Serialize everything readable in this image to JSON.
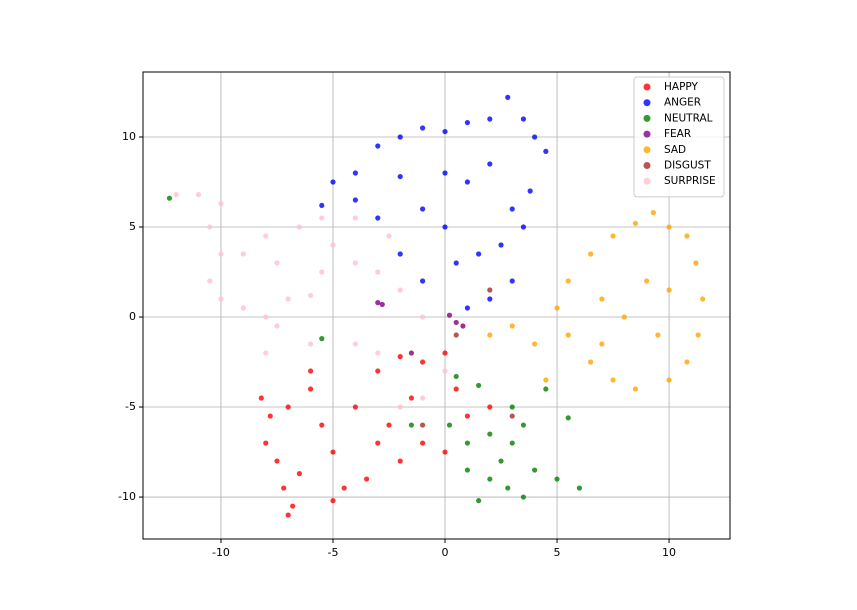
{
  "chart_data": {
    "type": "scatter",
    "xlim": [
      -13.48,
      12.72
    ],
    "ylim": [
      -12.33,
      13.61
    ],
    "xticks": [
      -10,
      -5,
      0,
      5,
      10
    ],
    "yticks": [
      -10,
      -5,
      0,
      5,
      10
    ],
    "grid": true,
    "legend": "upper right",
    "series": [
      {
        "name": "HAPPY",
        "color": "#ff0000",
        "x": [
          -7,
          -6.8,
          -7.2,
          -6.5,
          -7.5,
          -8,
          -7.8,
          -8.2,
          -7,
          -6,
          -5.5,
          -5,
          -4.5,
          -5,
          -3.5,
          -4,
          -3,
          -2.5,
          -2,
          -1,
          0,
          -1.5,
          -1,
          0.5,
          1,
          -3,
          -6,
          -2,
          0,
          2
        ],
        "y": [
          -11,
          -10.5,
          -9.5,
          -8.7,
          -8,
          -7,
          -5.5,
          -4.5,
          -5,
          -4,
          -6,
          -7.5,
          -9.5,
          -10.2,
          -9,
          -5,
          -3,
          -6,
          -8,
          -7,
          -7.5,
          -4.5,
          -2.5,
          -4,
          -5.5,
          -7,
          -3,
          -2.2,
          -2,
          -5
        ]
      },
      {
        "name": "ANGER",
        "color": "#0000ff",
        "x": [
          -5.5,
          -5,
          -4,
          -3,
          -2,
          -1,
          0,
          1,
          2,
          2.8,
          3.5,
          4.5,
          4,
          3.8,
          3,
          2.5,
          3,
          2,
          1,
          0.5,
          -1,
          -2,
          -3,
          -4,
          -1,
          0,
          1,
          2,
          -2,
          0,
          3.5,
          1.5
        ],
        "y": [
          6.2,
          7.5,
          8,
          9.5,
          10,
          10.5,
          10.3,
          10.8,
          11,
          12.2,
          11,
          9.2,
          10,
          7,
          6,
          4,
          2,
          1,
          0.5,
          3,
          2,
          3.5,
          5.5,
          6.5,
          6,
          5,
          7.5,
          8.5,
          7.8,
          8,
          5,
          3.5
        ]
      },
      {
        "name": "NEUTRAL",
        "color": "#008000",
        "x": [
          0.2,
          1,
          1.5,
          2,
          2.5,
          3,
          3.5,
          4,
          5,
          6,
          3.5,
          2,
          3,
          4.5,
          1,
          2.8,
          -12.3,
          -5.5,
          -1.5,
          5.5,
          0.5,
          1.5
        ],
        "y": [
          -6,
          -7,
          -10.2,
          -9,
          -8,
          -7,
          -6,
          -8.5,
          -9,
          -9.5,
          -10,
          -6.5,
          -5,
          -4,
          -8.5,
          -9.5,
          6.6,
          -1.2,
          -6,
          -5.6,
          -3.3,
          -3.8
        ]
      },
      {
        "name": "FEAR",
        "color": "#800080",
        "x": [
          -3,
          -2.8,
          0.5,
          0.8,
          -1.5,
          0.2
        ],
        "y": [
          0.8,
          0.7,
          -0.3,
          -0.5,
          -2,
          0.1
        ]
      },
      {
        "name": "SAD",
        "color": "#ffa500",
        "x": [
          9.3,
          10,
          10.8,
          11.2,
          11.5,
          11.3,
          10.8,
          10,
          8.5,
          7.5,
          6.5,
          5.5,
          5,
          5.5,
          6.5,
          7.5,
          8.5,
          9,
          8,
          9.5,
          7,
          4,
          3,
          2,
          4.5,
          10,
          7
        ],
        "y": [
          5.8,
          5,
          4.5,
          3,
          1,
          -1,
          -2.5,
          -3.5,
          -4,
          -3.5,
          -2.5,
          -1,
          0.5,
          2,
          3.5,
          4.5,
          5.2,
          2,
          0,
          -1,
          1,
          -1.5,
          -0.5,
          -1,
          -3.5,
          1.5,
          -1.5
        ]
      },
      {
        "name": "DISGUST",
        "color": "#a52a2a",
        "x": [
          2,
          3,
          0.5,
          -1
        ],
        "y": [
          1.5,
          -5.5,
          -1,
          -6
        ]
      },
      {
        "name": "SURPRISE",
        "color": "#ffc0cb",
        "x": [
          -12,
          -11,
          -10,
          -10.5,
          -10,
          -10.5,
          -10,
          -9,
          -8,
          -7,
          -6,
          -5.5,
          -5,
          -5.5,
          -6.5,
          -8,
          -9,
          -7.5,
          -4,
          -3,
          -2,
          -1,
          -4,
          -6,
          -8,
          -7.5,
          -3,
          -1,
          -2,
          0,
          -4,
          -2.5
        ],
        "y": [
          6.8,
          6.8,
          6.3,
          5,
          3.5,
          2,
          1,
          0.5,
          0,
          1,
          1.2,
          2.5,
          4,
          5.5,
          5,
          4.5,
          3.5,
          3,
          3,
          2.5,
          1.5,
          0,
          -1.5,
          -1.5,
          -2,
          -0.5,
          -2,
          -4.5,
          -5,
          -3,
          5.5,
          4.5
        ]
      }
    ]
  }
}
